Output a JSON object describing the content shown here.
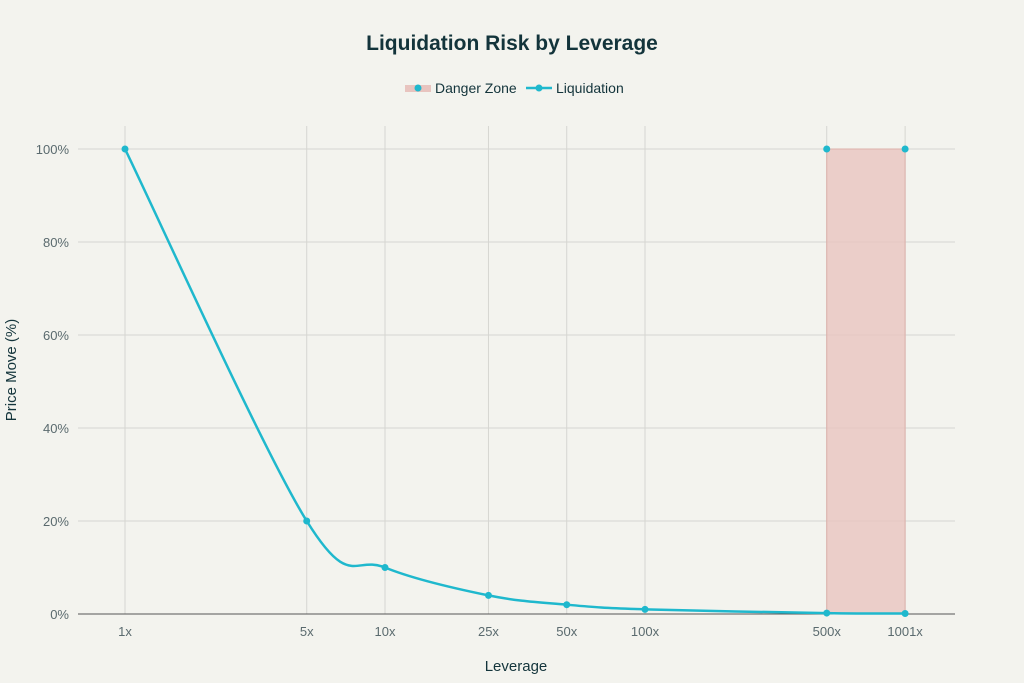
{
  "chart_data": {
    "type": "line",
    "title": "Liquidation Risk by Leverage",
    "xlabel": "Leverage",
    "ylabel": "Price Move (%)",
    "x_scale": "log",
    "xlim": [
      1,
      1001
    ],
    "ylim": [
      0,
      100
    ],
    "grid": true,
    "legend_placement": "top-center",
    "x_tick_values": [
      1,
      5,
      10,
      25,
      50,
      100,
      500,
      1001
    ],
    "x_tick_labels": [
      "1x",
      "5x",
      "10x",
      "25x",
      "50x",
      "100x",
      "500x",
      "1001x"
    ],
    "y_tick_values": [
      0,
      20,
      40,
      60,
      80,
      100
    ],
    "y_tick_labels": [
      "0%",
      "20%",
      "40%",
      "60%",
      "80%",
      "100%"
    ],
    "series": [
      {
        "name": "Danger Zone",
        "kind": "area",
        "color": "#e8c4bf",
        "x": [
          500,
          500,
          1001,
          1001
        ],
        "y": [
          0,
          100,
          100,
          0
        ]
      },
      {
        "name": "Liquidation",
        "kind": "line",
        "color": "#1fb8cd",
        "x": [
          1,
          5,
          10,
          25,
          50,
          100,
          500,
          1001
        ],
        "y": [
          100,
          20,
          10,
          4,
          2,
          1,
          0.2,
          0.1
        ]
      }
    ]
  }
}
